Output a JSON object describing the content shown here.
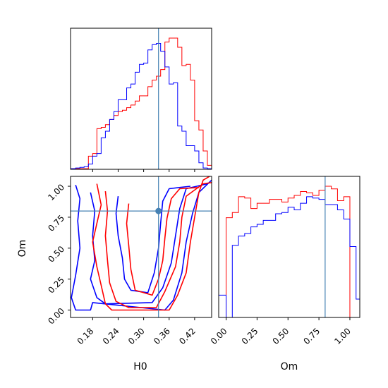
{
  "chart_data": {
    "type": "corner",
    "parameters": [
      "H0",
      "Om"
    ],
    "truths": {
      "H0": 0.335,
      "Om": 0.8
    },
    "panels": {
      "H0_hist": {
        "xlim": [
          0.128,
          0.46
        ],
        "bins": [
          0.13,
          0.14,
          0.15,
          0.16,
          0.17,
          0.18,
          0.19,
          0.2,
          0.21,
          0.22,
          0.23,
          0.24,
          0.25,
          0.26,
          0.27,
          0.28,
          0.29,
          0.3,
          0.31,
          0.32,
          0.33,
          0.34,
          0.35,
          0.36,
          0.37,
          0.38,
          0.39,
          0.4,
          0.41,
          0.42,
          0.43,
          0.44,
          0.45,
          0.46
        ],
        "series": [
          {
            "name": "red",
            "color": "#ff0000",
            "values": [
              0.005,
              0.005,
              0.005,
              0.005,
              0.1,
              0.12,
              0.31,
              0.32,
              0.34,
              0.38,
              0.41,
              0.44,
              0.45,
              0.47,
              0.49,
              0.52,
              0.56,
              0.56,
              0.63,
              0.68,
              0.71,
              0.76,
              0.97,
              1.0,
              1.0,
              0.93,
              0.79,
              0.8,
              0.68,
              0.37,
              0.3,
              0.14,
              0.03
            ]
          },
          {
            "name": "blue",
            "color": "#0000ff",
            "values": [
              0.005,
              0.01,
              0.015,
              0.02,
              0.04,
              0.1,
              0.12,
              0.24,
              0.29,
              0.38,
              0.44,
              0.53,
              0.53,
              0.62,
              0.65,
              0.74,
              0.8,
              0.81,
              0.91,
              0.95,
              0.96,
              0.9,
              0.78,
              0.65,
              0.66,
              0.33,
              0.29,
              0.18,
              0.18,
              0.14,
              0.05,
              0.01,
              0.005
            ]
          }
        ]
      },
      "Om_hist": {
        "xlim": [
          -0.06,
          1.08
        ],
        "bins": [
          -0.06,
          0.0,
          0.05,
          0.1,
          0.15,
          0.2,
          0.25,
          0.3,
          0.35,
          0.4,
          0.45,
          0.5,
          0.55,
          0.6,
          0.65,
          0.7,
          0.75,
          0.8,
          0.85,
          0.9,
          0.95,
          1.0,
          1.05,
          1.08
        ],
        "series": [
          {
            "name": "red",
            "color": "#ff0000",
            "values": [
              0,
              0.76,
              0.8,
              0.92,
              0.91,
              0.83,
              0.87,
              0.87,
              0.9,
              0.9,
              0.88,
              0.91,
              0.93,
              0.96,
              0.95,
              0.93,
              0.97,
              1.0,
              0.98,
              0.89,
              0.92,
              0,
              0
            ]
          },
          {
            "name": "blue",
            "color": "#0000ff",
            "values": [
              0.17,
              0.0,
              0.55,
              0.62,
              0.64,
              0.69,
              0.71,
              0.74,
              0.74,
              0.79,
              0.8,
              0.84,
              0.82,
              0.87,
              0.92,
              0.91,
              0.9,
              0.86,
              0.86,
              0.82,
              0.75,
              0.54,
              0.14
            ]
          }
        ]
      },
      "joint": {
        "xlim": [
          0.128,
          0.46
        ],
        "ylim": [
          -0.06,
          1.08
        ],
        "red_contours": [
          [
            [
              0.19,
              1.02
            ],
            [
              0.2,
              0.85
            ],
            [
              0.19,
              0.7
            ],
            [
              0.18,
              0.55
            ],
            [
              0.19,
              0.35
            ],
            [
              0.2,
              0.2
            ],
            [
              0.21,
              0.05
            ],
            [
              0.225,
              0.0
            ],
            [
              0.36,
              0.0
            ],
            [
              0.38,
              0.12
            ],
            [
              0.4,
              0.3
            ],
            [
              0.41,
              0.55
            ],
            [
              0.42,
              0.75
            ],
            [
              0.43,
              0.95
            ],
            [
              0.44,
              1.05
            ],
            [
              0.455,
              1.08
            ]
          ],
          [
            [
              0.21,
              0.96
            ],
            [
              0.215,
              0.8
            ],
            [
              0.21,
              0.6
            ],
            [
              0.215,
              0.4
            ],
            [
              0.22,
              0.22
            ],
            [
              0.235,
              0.07
            ],
            [
              0.265,
              0.02
            ],
            [
              0.33,
              0.02
            ],
            [
              0.35,
              0.15
            ],
            [
              0.375,
              0.35
            ],
            [
              0.385,
              0.55
            ],
            [
              0.39,
              0.75
            ],
            [
              0.4,
              0.92
            ],
            [
              0.44,
              1.02
            ],
            [
              0.46,
              1.03
            ]
          ],
          [
            [
              0.265,
              0.86
            ],
            [
              0.26,
              0.7
            ],
            [
              0.265,
              0.52
            ],
            [
              0.27,
              0.33
            ],
            [
              0.28,
              0.16
            ],
            [
              0.32,
              0.12
            ],
            [
              0.335,
              0.25
            ],
            [
              0.345,
              0.4
            ],
            [
              0.35,
              0.58
            ],
            [
              0.355,
              0.74
            ],
            [
              0.365,
              0.9
            ],
            [
              0.385,
              0.98
            ],
            [
              0.43,
              0.99
            ]
          ]
        ],
        "blue_contours": [
          [
            [
              0.14,
              1.01
            ],
            [
              0.15,
              0.9
            ],
            [
              0.145,
              0.72
            ],
            [
              0.15,
              0.5
            ],
            [
              0.14,
              0.28
            ],
            [
              0.13,
              0.1
            ],
            [
              0.14,
              0.0
            ],
            [
              0.175,
              0.0
            ],
            [
              0.18,
              0.06
            ],
            [
              0.35,
              0.0
            ],
            [
              0.37,
              0.08
            ],
            [
              0.39,
              0.3
            ],
            [
              0.4,
              0.55
            ],
            [
              0.415,
              0.78
            ],
            [
              0.43,
              0.95
            ],
            [
              0.46,
              1.05
            ]
          ],
          [
            [
              0.175,
              0.95
            ],
            [
              0.185,
              0.8
            ],
            [
              0.18,
              0.6
            ],
            [
              0.185,
              0.4
            ],
            [
              0.175,
              0.25
            ],
            [
              0.19,
              0.1
            ],
            [
              0.21,
              0.05
            ],
            [
              0.32,
              0.06
            ],
            [
              0.345,
              0.18
            ],
            [
              0.365,
              0.38
            ],
            [
              0.375,
              0.6
            ],
            [
              0.385,
              0.82
            ],
            [
              0.4,
              0.98
            ],
            [
              0.45,
              1.02
            ]
          ],
          [
            [
              0.24,
              0.92
            ],
            [
              0.235,
              0.78
            ],
            [
              0.24,
              0.6
            ],
            [
              0.25,
              0.42
            ],
            [
              0.255,
              0.25
            ],
            [
              0.27,
              0.16
            ],
            [
              0.31,
              0.14
            ],
            [
              0.325,
              0.3
            ],
            [
              0.335,
              0.5
            ],
            [
              0.34,
              0.7
            ],
            [
              0.345,
              0.88
            ],
            [
              0.36,
              0.98
            ],
            [
              0.41,
              1.0
            ]
          ]
        ]
      }
    },
    "axes": {
      "xlabel_bottom_left": "H0",
      "ylabel_left": "Om",
      "xlabel_bottom_right": "Om",
      "H0_ticks": [
        0.18,
        0.24,
        0.3,
        0.36,
        0.42
      ],
      "H0_tick_labels": [
        "0.18",
        "0.24",
        "0.30",
        "0.36",
        "0.42"
      ],
      "Om_ticks": [
        0.0,
        0.25,
        0.5,
        0.75,
        1.0
      ],
      "Om_tick_labels": [
        "0.00",
        "0.25",
        "0.50",
        "0.75",
        "1.00"
      ]
    },
    "grid": false,
    "truth_color": "#4682b4"
  }
}
